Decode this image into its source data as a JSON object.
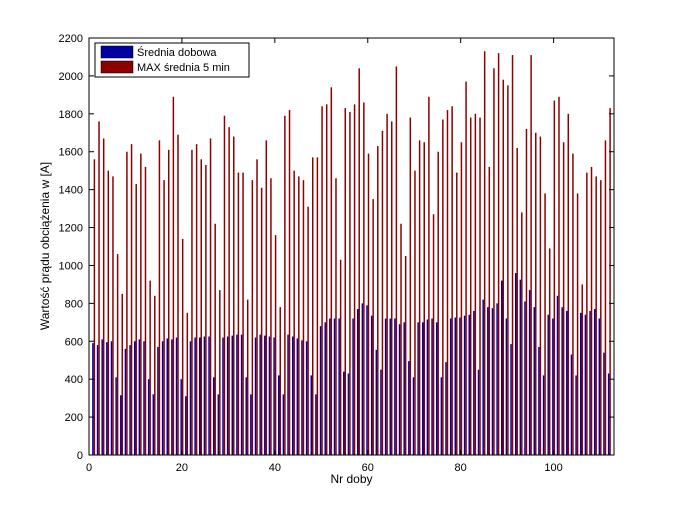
{
  "chart_data": {
    "type": "bar",
    "title": "",
    "xlabel": "Nr doby",
    "ylabel": "Wartość prądu obciążenia w [A]",
    "xlim": [
      0,
      113
    ],
    "ylim": [
      0,
      2200
    ],
    "xticks": [
      0,
      20,
      40,
      60,
      80,
      100
    ],
    "yticks": [
      0,
      200,
      400,
      600,
      800,
      1000,
      1200,
      1400,
      1600,
      1800,
      2000,
      2200
    ],
    "grid": false,
    "legend_position": "top-left",
    "x": [
      1,
      2,
      3,
      4,
      5,
      6,
      7,
      8,
      9,
      10,
      11,
      12,
      13,
      14,
      15,
      16,
      17,
      18,
      19,
      20,
      21,
      22,
      23,
      24,
      25,
      26,
      27,
      28,
      29,
      30,
      31,
      32,
      33,
      34,
      35,
      36,
      37,
      38,
      39,
      40,
      41,
      42,
      43,
      44,
      45,
      46,
      47,
      48,
      49,
      50,
      51,
      52,
      53,
      54,
      55,
      56,
      57,
      58,
      59,
      60,
      61,
      62,
      63,
      64,
      65,
      66,
      67,
      68,
      69,
      70,
      71,
      72,
      73,
      74,
      75,
      76,
      77,
      78,
      79,
      80,
      81,
      82,
      83,
      84,
      85,
      86,
      87,
      88,
      89,
      90,
      91,
      92,
      93,
      94,
      95,
      96,
      97,
      98,
      99,
      100,
      101,
      102,
      103,
      104,
      105,
      106,
      107,
      108,
      109,
      110,
      111,
      112
    ],
    "series": [
      {
        "name": "Średnia dobowa",
        "color": "#0000a0",
        "values": [
          590,
          580,
          610,
          595,
          600,
          410,
          315,
          560,
          580,
          600,
          610,
          600,
          400,
          320,
          570,
          600,
          615,
          610,
          620,
          400,
          310,
          600,
          620,
          620,
          625,
          625,
          410,
          320,
          620,
          625,
          630,
          635,
          635,
          410,
          320,
          620,
          635,
          630,
          625,
          620,
          420,
          320,
          635,
          625,
          615,
          605,
          600,
          420,
          320,
          680,
          700,
          720,
          720,
          720,
          440,
          430,
          720,
          770,
          800,
          790,
          735,
          555,
          450,
          720,
          720,
          720,
          690,
          700,
          495,
          410,
          700,
          700,
          715,
          720,
          700,
          410,
          490,
          720,
          725,
          725,
          735,
          740,
          760,
          450,
          820,
          780,
          775,
          800,
          920,
          720,
          585,
          960,
          925,
          810,
          870,
          780,
          570,
          420,
          740,
          720,
          840,
          780,
          760,
          530,
          420,
          750,
          740,
          760,
          770,
          720,
          540,
          430
        ]
      },
      {
        "name": "MAX średnia 5 min",
        "color": "#8b0000",
        "values": [
          1560,
          1760,
          1670,
          1500,
          1470,
          1060,
          850,
          1600,
          1640,
          1430,
          1590,
          1520,
          920,
          840,
          1660,
          1450,
          1610,
          1890,
          1690,
          1140,
          750,
          1610,
          1640,
          1560,
          1530,
          1670,
          1220,
          870,
          1790,
          1730,
          1680,
          1490,
          1490,
          820,
          1450,
          1560,
          1410,
          1660,
          1460,
          1160,
          780,
          1790,
          1820,
          1500,
          1470,
          1450,
          1310,
          1570,
          1570,
          1840,
          1850,
          1940,
          1460,
          1030,
          1830,
          1810,
          1850,
          2040,
          1860,
          1590,
          1350,
          1630,
          1710,
          1800,
          1760,
          2050,
          1220,
          1050,
          1780,
          1500,
          1660,
          1650,
          1890,
          1270,
          1600,
          1770,
          1820,
          1840,
          1490,
          1650,
          1970,
          1780,
          1800,
          1780,
          2130,
          1520,
          2040,
          2120,
          1980,
          1950,
          2110,
          1620,
          1280,
          1720,
          2110,
          1700,
          1680,
          1380,
          1090,
          1870,
          1890,
          1650,
          1800,
          1590,
          1380,
          900,
          1490,
          1520,
          1470,
          1450,
          1660,
          1830
        ]
      }
    ]
  }
}
